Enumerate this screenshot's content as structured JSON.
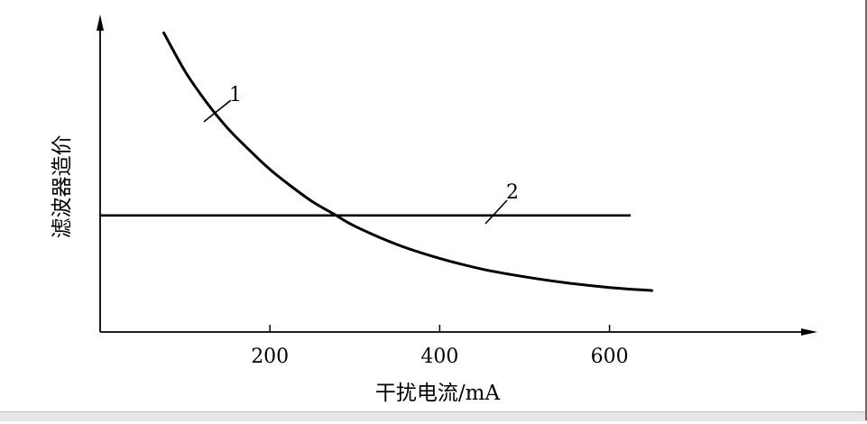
{
  "chart_data": {
    "type": "line",
    "ylabel": "滤波器造价",
    "xlabel": "干扰电流/mA",
    "xticks": [
      200,
      400,
      600
    ],
    "xlim": [
      0,
      830
    ],
    "ylim": [
      0,
      10
    ],
    "series": [
      {
        "name": "1",
        "x": [
          75,
          100,
          125,
          150,
          175,
          200,
          225,
          250,
          275,
          300,
          350,
          400,
          450,
          500,
          550,
          600,
          650
        ],
        "y": [
          9.75,
          8.5,
          7.5,
          6.65,
          5.95,
          5.3,
          4.75,
          4.25,
          3.85,
          3.45,
          2.85,
          2.4,
          2.05,
          1.8,
          1.6,
          1.45,
          1.35
        ]
      },
      {
        "name": "2",
        "x": [
          0,
          625
        ],
        "y": [
          3.8,
          3.8
        ]
      }
    ]
  }
}
